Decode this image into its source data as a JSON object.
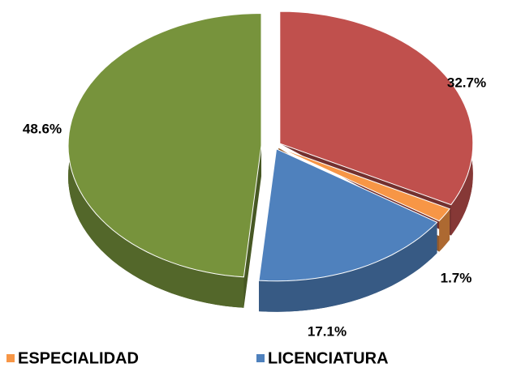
{
  "chart_data": {
    "type": "pie",
    "categories": [
      null,
      "ESPECIALIDAD",
      "LICENCIATURA",
      null
    ],
    "values": [
      32.7,
      1.7,
      17.1,
      48.6
    ],
    "value_labels": [
      "32.7%",
      "1.7%",
      "17.1%",
      "48.6%"
    ],
    "colors": [
      "#c0504d",
      "#f79646",
      "#4f81bd",
      "#77933c"
    ]
  }
}
